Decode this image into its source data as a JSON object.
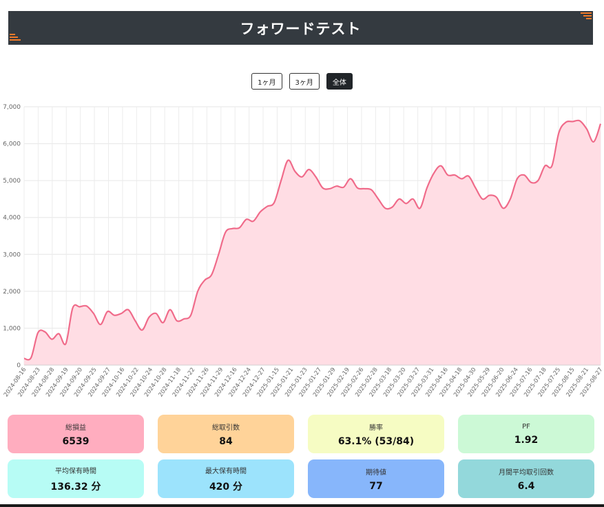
{
  "header": {
    "title": "フォワードテスト"
  },
  "range_buttons": [
    {
      "label": "1ヶ月",
      "active": false
    },
    {
      "label": "3ヶ月",
      "active": false
    },
    {
      "label": "全体",
      "active": true
    }
  ],
  "colors": {
    "line": "#f06b8a",
    "fill": "#ffdde4",
    "header": "#343a40",
    "accent": "#f07a2a"
  },
  "chart_data": {
    "type": "area",
    "ylim": [
      0,
      7000
    ],
    "y_ticks": [
      "0",
      "1,000",
      "2,000",
      "3,000",
      "4,000",
      "5,000",
      "6,000",
      "7,000"
    ],
    "grid": true,
    "x_labels": [
      "2024-08-16",
      "2024-08-23",
      "2024-08-28",
      "2024-09-19",
      "2024-09-20",
      "2024-09-25",
      "2024-09-27",
      "2024-10-16",
      "2024-10-22",
      "2024-10-24",
      "2024-10-28",
      "2024-11-18",
      "2024-11-22",
      "2024-11-26",
      "2024-11-29",
      "2024-12-16",
      "2024-12-24",
      "2024-12-27",
      "2025-01-15",
      "2025-01-21",
      "2025-01-23",
      "2025-01-27",
      "2025-01-29",
      "2025-02-19",
      "2025-02-26",
      "2025-02-28",
      "2025-03-18",
      "2025-03-20",
      "2025-03-27",
      "2025-03-31",
      "2025-04-16",
      "2025-04-18",
      "2025-04-30",
      "2025-05-29",
      "2025-06-20",
      "2025-06-24",
      "2025-07-16",
      "2025-07-18",
      "2025-07-25",
      "2025-08-15",
      "2025-08-21",
      "2025-08-27"
    ],
    "values": [
      180,
      200,
      880,
      900,
      700,
      850,
      580,
      1550,
      1580,
      1600,
      1400,
      1100,
      1450,
      1350,
      1400,
      1500,
      1200,
      950,
      1300,
      1400,
      1150,
      1500,
      1200,
      1250,
      1350,
      2000,
      2300,
      2450,
      3000,
      3600,
      3700,
      3720,
      3950,
      3900,
      4150,
      4300,
      4400,
      5000,
      5550,
      5250,
      5100,
      5300,
      5100,
      4800,
      4780,
      4850,
      4820,
      5050,
      4800,
      4780,
      4750,
      4500,
      4250,
      4280,
      4500,
      4380,
      4500,
      4250,
      4800,
      5200,
      5400,
      5150,
      5150,
      5050,
      5120,
      4800,
      4500,
      4600,
      4550,
      4250,
      4500,
      5050,
      5150,
      4950,
      5000,
      5400,
      5400,
      6300,
      6580,
      6600,
      6620,
      6400,
      6050,
      6539
    ],
    "series": [
      {
        "name": "",
        "values": []
      }
    ]
  },
  "stats": [
    {
      "label": "総損益",
      "value": "6539",
      "color": "#ffadbf"
    },
    {
      "label": "総取引数",
      "value": "84",
      "color": "#ffd399"
    },
    {
      "label": "勝率",
      "value": "63.1% (53/84)",
      "color": "#f6fcc3"
    },
    {
      "label": "PF",
      "value": "1.92",
      "color": "#ccf9d6"
    },
    {
      "label": "平均保有時間",
      "value": "136.32 分",
      "color": "#b7fcf5"
    },
    {
      "label": "最大保有時間",
      "value": "420 分",
      "color": "#9ce3fc"
    },
    {
      "label": "期待値",
      "value": "77",
      "color": "#87b6fb"
    },
    {
      "label": "月間平均取引回数",
      "value": "6.4",
      "color": "#93d8db"
    }
  ]
}
